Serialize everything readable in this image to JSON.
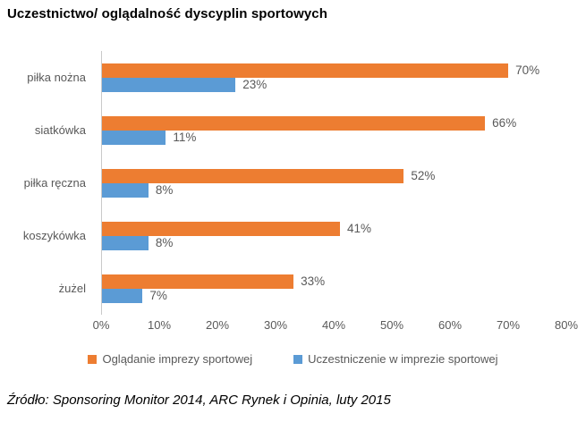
{
  "title": "Uczestnictwo/ oglądalność dyscyplin sportowych",
  "source": "Źródło: Sponsoring Monitor 2014, ARC Rynek i Opinia, luty 2015",
  "colors": {
    "watching": "#ED7D31",
    "participating": "#5B9BD5",
    "axis_text": "#595959",
    "axis_line": "#C9C9C9"
  },
  "chart_data": {
    "type": "bar",
    "orientation": "horizontal",
    "title": "Uczestnictwo/ oglądalność dyscyplin sportowych",
    "categories": [
      "piłka nożna",
      "siatkówka",
      "piłka ręczna",
      "koszykówka",
      "żużel"
    ],
    "series": [
      {
        "name": "Oglądanie imprezy sportowej",
        "color": "#ED7D31",
        "values": [
          70,
          66,
          52,
          41,
          33
        ]
      },
      {
        "name": "Uczestniczenie w imprezie sportowej",
        "color": "#5B9BD5",
        "values": [
          23,
          11,
          8,
          8,
          7
        ]
      }
    ],
    "data_labels": [
      [
        "70%",
        "66%",
        "52%",
        "41%",
        "33%"
      ],
      [
        "23%",
        "11%",
        "8%",
        "8%",
        "7%"
      ]
    ],
    "xlim": [
      0,
      80
    ],
    "x_ticks": [
      "0%",
      "10%",
      "20%",
      "30%",
      "40%",
      "50%",
      "60%",
      "70%",
      "80%"
    ],
    "grid": false,
    "legend_position": "bottom"
  }
}
